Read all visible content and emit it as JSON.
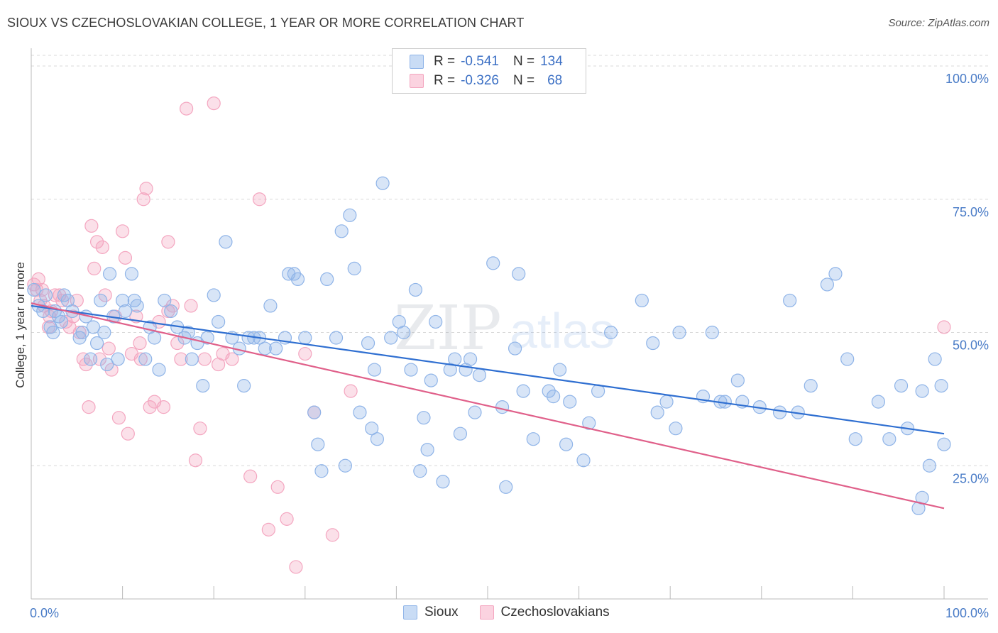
{
  "title": "SIOUX VS CZECHOSLOVAKIAN COLLEGE, 1 YEAR OR MORE CORRELATION CHART",
  "source": "Source: ZipAtlas.com",
  "watermark": {
    "zip": "ZIP",
    "atlas": "atlas"
  },
  "legend": {
    "rows": [
      {
        "r_label": "R =",
        "r_value": "-0.541",
        "n_label": "N =",
        "n_value": "134",
        "color": "#8fb4e8"
      },
      {
        "r_label": "R =",
        "r_value": "-0.326",
        "n_label": "N =",
        "n_value": "68",
        "color": "#f4a6c0"
      }
    ]
  },
  "bottom_legend": {
    "series1": "Sioux",
    "series2": "Czechoslovakians"
  },
  "chart_data": {
    "type": "scatter",
    "title": "SIOUX VS CZECHOSLOVAKIAN COLLEGE, 1 YEAR OR MORE CORRELATION CHART",
    "xlabel": "",
    "ylabel": "College, 1 year or more",
    "x_tick_labels": [
      "0.0%",
      "100.0%"
    ],
    "y_tick_labels": [
      "100.0%",
      "75.0%",
      "50.0%",
      "25.0%"
    ],
    "xlim": [
      0,
      100
    ],
    "ylim": [
      0,
      102
    ],
    "grid": true,
    "series": [
      {
        "name": "Sioux",
        "color": "#8fb4e8",
        "line_color": "#2f6fd1",
        "trend": {
          "x": [
            0,
            100
          ],
          "y": [
            55.0,
            31.0
          ]
        },
        "points": [
          [
            0.3,
            58
          ],
          [
            0.8,
            55
          ],
          [
            1.3,
            54
          ],
          [
            1.6,
            57
          ],
          [
            2.1,
            51
          ],
          [
            2.4,
            50
          ],
          [
            2.6,
            54
          ],
          [
            3.0,
            53
          ],
          [
            3.3,
            52
          ],
          [
            3.6,
            57
          ],
          [
            4.0,
            56
          ],
          [
            4.5,
            54
          ],
          [
            5.3,
            49
          ],
          [
            5.6,
            50
          ],
          [
            6.0,
            53
          ],
          [
            6.5,
            45
          ],
          [
            6.8,
            51
          ],
          [
            7.2,
            48
          ],
          [
            7.6,
            56
          ],
          [
            8.0,
            50
          ],
          [
            8.3,
            44
          ],
          [
            8.6,
            61
          ],
          [
            9.0,
            53
          ],
          [
            9.5,
            45
          ],
          [
            10.0,
            56
          ],
          [
            10.3,
            54
          ],
          [
            11.0,
            61
          ],
          [
            11.3,
            56
          ],
          [
            11.6,
            55
          ],
          [
            12.5,
            45
          ],
          [
            13.0,
            51
          ],
          [
            13.5,
            49
          ],
          [
            14.0,
            43
          ],
          [
            14.6,
            56
          ],
          [
            15.3,
            54
          ],
          [
            16.0,
            51
          ],
          [
            16.8,
            49
          ],
          [
            17.2,
            50
          ],
          [
            17.6,
            45
          ],
          [
            18.2,
            48
          ],
          [
            18.8,
            40
          ],
          [
            19.3,
            49
          ],
          [
            20.0,
            57
          ],
          [
            20.5,
            52
          ],
          [
            21.3,
            67
          ],
          [
            22.0,
            49
          ],
          [
            22.8,
            47
          ],
          [
            23.3,
            40
          ],
          [
            23.8,
            49
          ],
          [
            24.4,
            49
          ],
          [
            25.0,
            49
          ],
          [
            25.6,
            47
          ],
          [
            26.2,
            55
          ],
          [
            26.8,
            47
          ],
          [
            27.8,
            49
          ],
          [
            28.2,
            61
          ],
          [
            28.8,
            61
          ],
          [
            29.2,
            60
          ],
          [
            30.0,
            49
          ],
          [
            31.0,
            35
          ],
          [
            31.4,
            29
          ],
          [
            31.8,
            24
          ],
          [
            32.4,
            60
          ],
          [
            33.4,
            49
          ],
          [
            34.0,
            69
          ],
          [
            34.4,
            25
          ],
          [
            34.9,
            72
          ],
          [
            35.4,
            62
          ],
          [
            36.0,
            35
          ],
          [
            36.9,
            48
          ],
          [
            37.3,
            32
          ],
          [
            37.6,
            43
          ],
          [
            37.9,
            30
          ],
          [
            38.5,
            78
          ],
          [
            39.4,
            49
          ],
          [
            40.3,
            52
          ],
          [
            40.8,
            50
          ],
          [
            41.6,
            43
          ],
          [
            42.1,
            58
          ],
          [
            42.6,
            24
          ],
          [
            43.0,
            34
          ],
          [
            43.4,
            28
          ],
          [
            43.8,
            41
          ],
          [
            44.3,
            52
          ],
          [
            45.1,
            22
          ],
          [
            45.9,
            43
          ],
          [
            46.4,
            45
          ],
          [
            47.0,
            31
          ],
          [
            47.6,
            43
          ],
          [
            48.1,
            45
          ],
          [
            48.6,
            35
          ],
          [
            49.1,
            42
          ],
          [
            50.6,
            63
          ],
          [
            51.6,
            36
          ],
          [
            52.0,
            21
          ],
          [
            53.0,
            47
          ],
          [
            53.4,
            61
          ],
          [
            53.9,
            39
          ],
          [
            55.0,
            30
          ],
          [
            56.7,
            39
          ],
          [
            57.2,
            38
          ],
          [
            57.9,
            43
          ],
          [
            58.6,
            29
          ],
          [
            59.0,
            37
          ],
          [
            60.5,
            26
          ],
          [
            61.1,
            33
          ],
          [
            62.1,
            39
          ],
          [
            63.5,
            50
          ],
          [
            66.9,
            56
          ],
          [
            68.1,
            48
          ],
          [
            68.6,
            35
          ],
          [
            69.6,
            37
          ],
          [
            70.6,
            32
          ],
          [
            71.0,
            50
          ],
          [
            73.6,
            38
          ],
          [
            74.6,
            50
          ],
          [
            75.5,
            37
          ],
          [
            76.0,
            37
          ],
          [
            77.4,
            41
          ],
          [
            77.9,
            37
          ],
          [
            79.8,
            36
          ],
          [
            82.0,
            35
          ],
          [
            83.1,
            56
          ],
          [
            84.0,
            35
          ],
          [
            85.4,
            40
          ],
          [
            87.2,
            59
          ],
          [
            88.1,
            61
          ],
          [
            89.4,
            45
          ],
          [
            90.3,
            30
          ],
          [
            92.8,
            37
          ],
          [
            94.0,
            30
          ],
          [
            95.3,
            40
          ],
          [
            96.0,
            32
          ],
          [
            97.6,
            39
          ],
          [
            99.0,
            45
          ],
          [
            100.0,
            29
          ],
          [
            97.2,
            17
          ],
          [
            97.6,
            19
          ],
          [
            99.7,
            40
          ],
          [
            98.4,
            25
          ]
        ]
      },
      {
        "name": "Czechoslovakians",
        "color": "#f4a6c0",
        "line_color": "#e0608a",
        "trend": {
          "x": [
            0,
            100
          ],
          "y": [
            55.5,
            17.0
          ]
        },
        "points": [
          [
            0.3,
            59
          ],
          [
            0.6,
            58
          ],
          [
            1.0,
            56
          ],
          [
            1.4,
            55
          ],
          [
            1.9,
            51
          ],
          [
            2.2,
            54
          ],
          [
            2.6,
            57
          ],
          [
            3.1,
            57
          ],
          [
            3.4,
            56
          ],
          [
            3.8,
            52
          ],
          [
            4.2,
            51
          ],
          [
            4.6,
            53
          ],
          [
            5.0,
            56
          ],
          [
            5.3,
            50
          ],
          [
            5.7,
            45
          ],
          [
            6.0,
            44
          ],
          [
            6.3,
            36
          ],
          [
            6.6,
            70
          ],
          [
            6.9,
            62
          ],
          [
            7.2,
            67
          ],
          [
            7.5,
            45
          ],
          [
            7.8,
            66
          ],
          [
            8.1,
            57
          ],
          [
            8.5,
            47
          ],
          [
            8.8,
            43
          ],
          [
            9.2,
            53
          ],
          [
            9.6,
            34
          ],
          [
            10.0,
            69
          ],
          [
            10.3,
            64
          ],
          [
            10.6,
            31
          ],
          [
            11.0,
            46
          ],
          [
            11.5,
            53
          ],
          [
            11.9,
            48
          ],
          [
            12.3,
            75
          ],
          [
            12.6,
            77
          ],
          [
            13.0,
            36
          ],
          [
            13.5,
            37
          ],
          [
            14.0,
            52
          ],
          [
            14.5,
            36
          ],
          [
            15.0,
            67
          ],
          [
            15.5,
            55
          ],
          [
            16.0,
            48
          ],
          [
            16.4,
            45
          ],
          [
            17.0,
            92
          ],
          [
            17.5,
            55
          ],
          [
            18.0,
            26
          ],
          [
            18.5,
            32
          ],
          [
            19.0,
            45
          ],
          [
            20.0,
            93
          ],
          [
            20.5,
            44
          ],
          [
            21.0,
            46
          ],
          [
            22.0,
            45
          ],
          [
            24.0,
            23
          ],
          [
            25.0,
            75
          ],
          [
            26.0,
            13
          ],
          [
            27.0,
            21
          ],
          [
            28.0,
            15
          ],
          [
            29.0,
            6
          ],
          [
            30.0,
            46
          ],
          [
            31.0,
            35
          ],
          [
            33.0,
            12
          ],
          [
            35.0,
            39
          ],
          [
            0.8,
            60
          ],
          [
            1.2,
            58
          ],
          [
            2.0,
            53
          ],
          [
            15.0,
            54
          ],
          [
            12.0,
            45
          ],
          [
            100.0,
            51
          ]
        ]
      }
    ]
  }
}
